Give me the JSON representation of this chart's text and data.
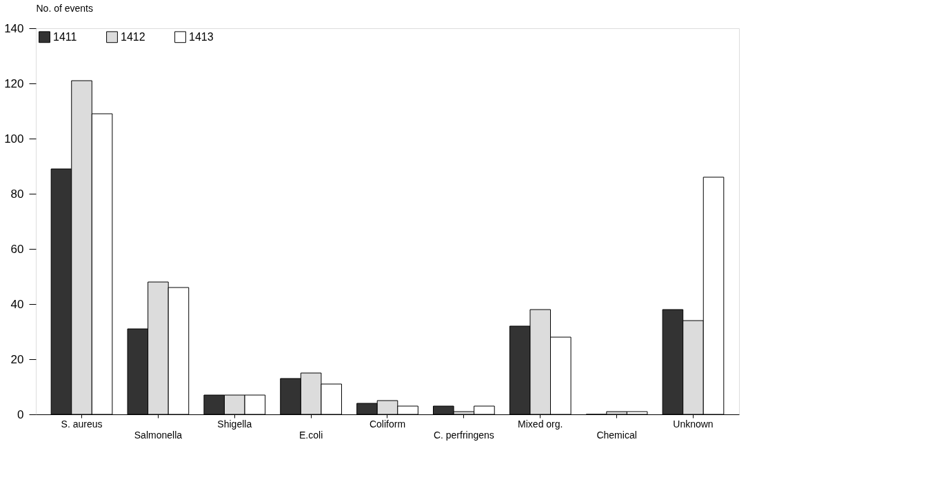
{
  "chart_data": {
    "type": "bar",
    "ylabel": "No. of events",
    "categories": [
      "S. aureus",
      "Salmonella",
      "Shigella",
      "E.coli",
      "Coliform",
      "C. perfringens",
      "Mixed  org.",
      "Chemical",
      "Unknown"
    ],
    "series": [
      {
        "name": "1411",
        "color": "#333333",
        "values": [
          89,
          31,
          7,
          13,
          4,
          3,
          32,
          0,
          38
        ]
      },
      {
        "name": "1412",
        "color": "#dcdcdc",
        "values": [
          121,
          48,
          7,
          15,
          5,
          1,
          38,
          1,
          34
        ]
      },
      {
        "name": "1413",
        "color": "#ffffff",
        "values": [
          109,
          46,
          7,
          11,
          3,
          3,
          28,
          1,
          86
        ]
      }
    ],
    "ylim": [
      0,
      140
    ],
    "yticks": [
      0,
      20,
      40,
      60,
      80,
      100,
      120,
      140
    ],
    "grid": false,
    "legend": "top left"
  }
}
